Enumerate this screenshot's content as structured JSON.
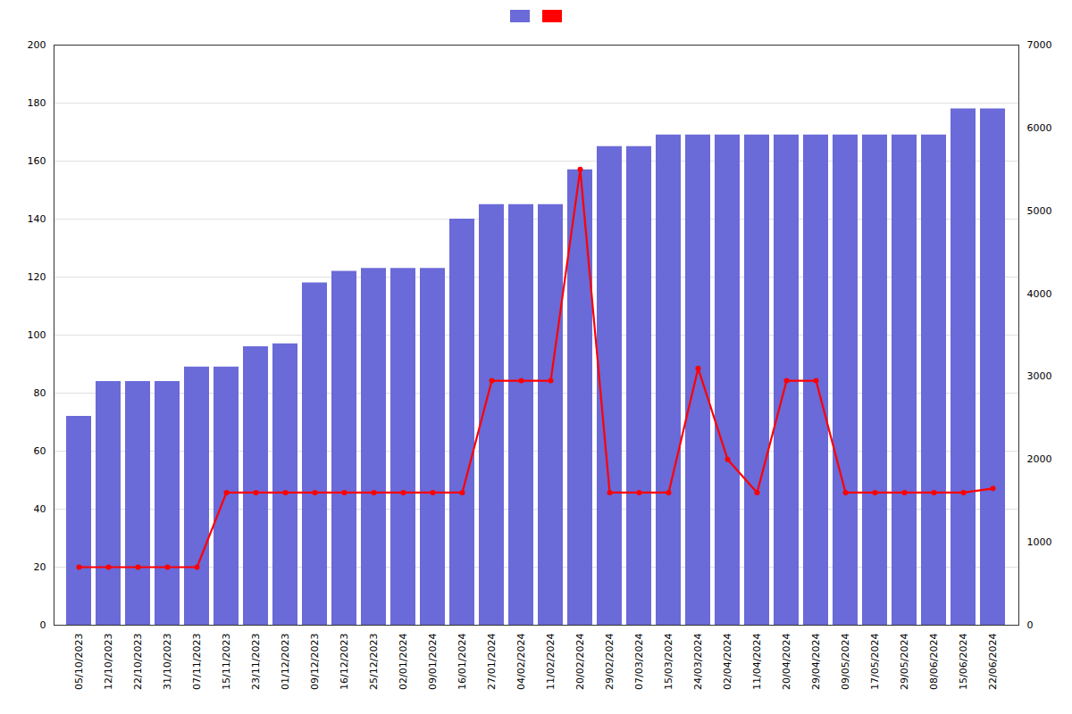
{
  "chart_data": {
    "type": "bar",
    "categories": [
      "05/10/2023",
      "12/10/2023",
      "22/10/2023",
      "31/10/2023",
      "07/11/2023",
      "15/11/2023",
      "23/11/2023",
      "01/12/2023",
      "09/12/2023",
      "16/12/2023",
      "25/12/2023",
      "02/01/2024",
      "09/01/2024",
      "16/01/2024",
      "27/01/2024",
      "04/02/2024",
      "11/02/2024",
      "20/02/2024",
      "29/02/2024",
      "07/03/2024",
      "15/03/2024",
      "24/03/2024",
      "02/04/2024",
      "11/04/2024",
      "20/04/2024",
      "29/04/2024",
      "09/05/2024",
      "17/05/2024",
      "29/05/2024",
      "08/06/2024",
      "15/06/2024",
      "22/06/2024"
    ],
    "series": [
      {
        "type": "bar",
        "color": "#6a6ad8",
        "values": [
          72,
          84,
          84,
          84,
          89,
          89,
          96,
          97,
          118,
          122,
          123,
          123,
          123,
          140,
          145,
          145,
          145,
          157,
          165,
          165,
          169,
          169,
          169,
          169,
          169,
          169,
          169,
          169,
          169,
          169,
          178,
          178
        ]
      },
      {
        "type": "line",
        "color": "#ff0000",
        "marker": "circle",
        "axis": "y2",
        "values": [
          700,
          700,
          700,
          700,
          700,
          1600,
          1600,
          1600,
          1600,
          1600,
          1600,
          1600,
          1600,
          1600,
          2950,
          2950,
          2950,
          5500,
          1600,
          1600,
          1600,
          3100,
          2000,
          1600,
          2950,
          2950,
          1600,
          1600,
          1600,
          1600,
          1600,
          1650
        ]
      }
    ],
    "ylim": [
      0,
      200
    ],
    "yticks": [
      0,
      20,
      40,
      60,
      80,
      100,
      120,
      140,
      160,
      180,
      200
    ],
    "y2lim": [
      0,
      7000
    ],
    "y2ticks": [
      0,
      1000,
      2000,
      3000,
      4000,
      5000,
      6000,
      7000
    ],
    "grid": true,
    "legend": "upper center"
  }
}
